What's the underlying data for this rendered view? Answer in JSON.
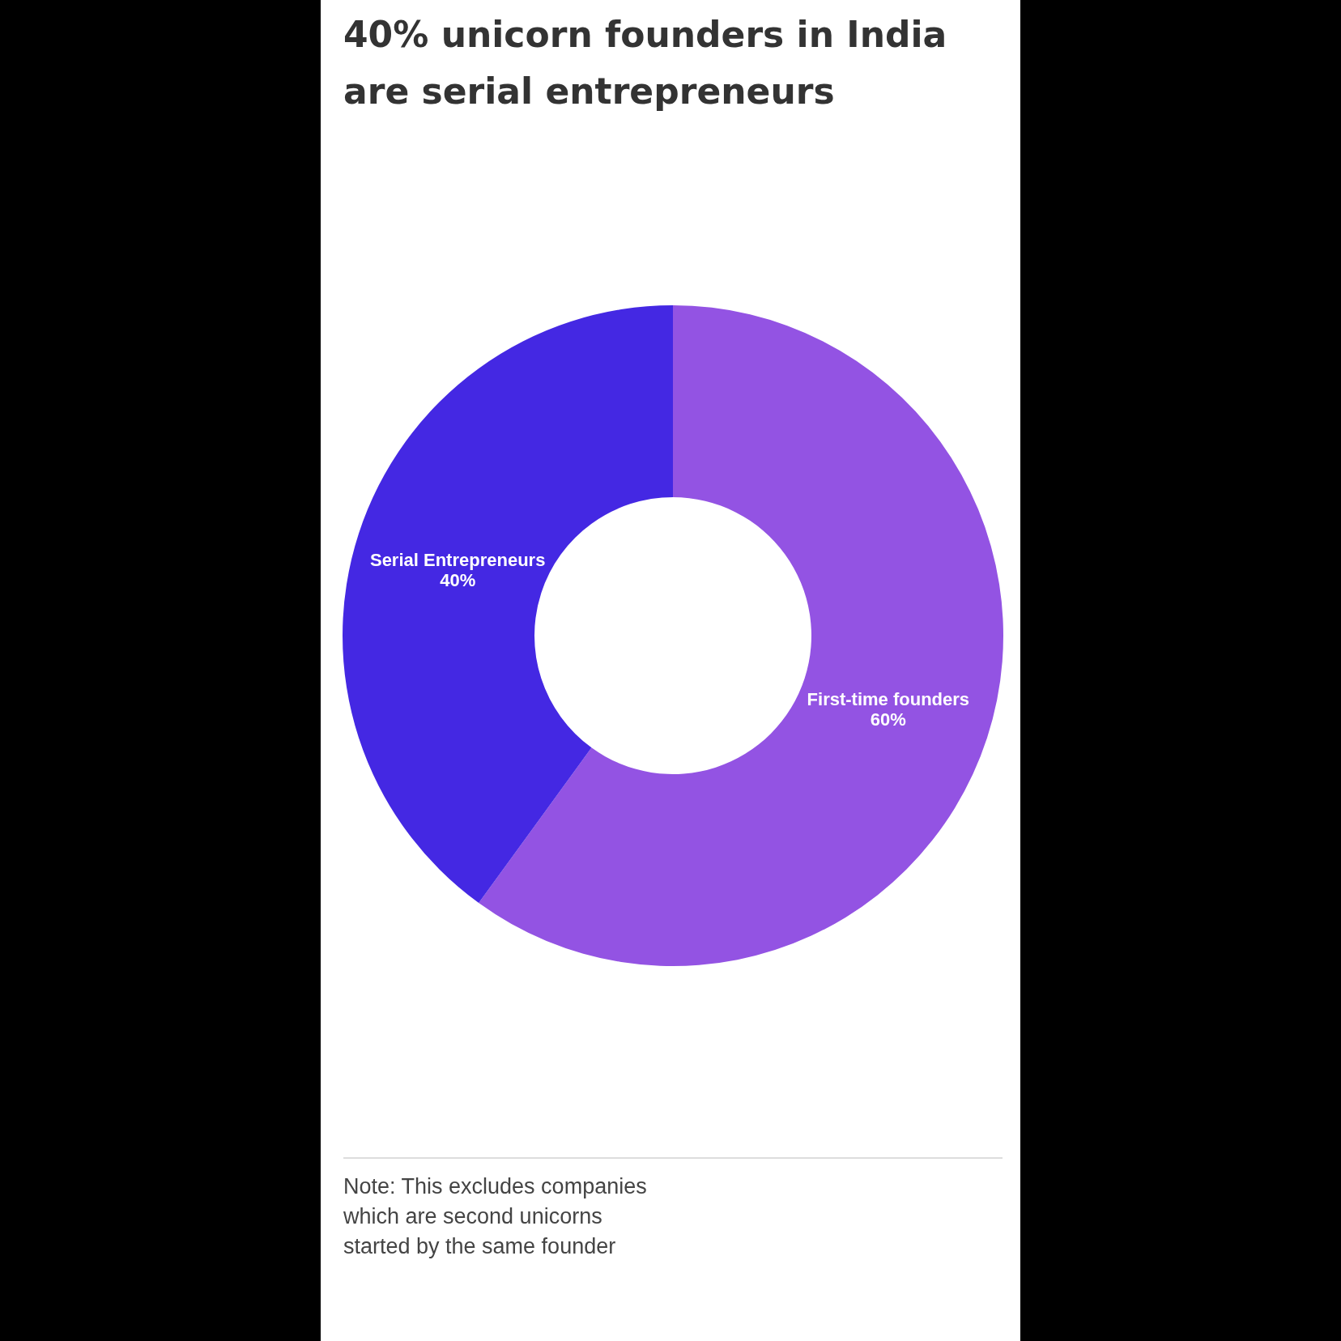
{
  "chart_data": {
    "type": "donut",
    "title": "40% unicorn founders in India are serial entrepreneurs",
    "categories": [
      "First-time founders",
      "Serial Entrepreneurs"
    ],
    "values": [
      60,
      40
    ],
    "value_labels": [
      "60%",
      "40%"
    ],
    "colors": [
      "#9353e3",
      "#4428e3"
    ],
    "annotations": [
      "Note: This excludes companies which are second unicorns started by the same founder"
    ]
  }
}
